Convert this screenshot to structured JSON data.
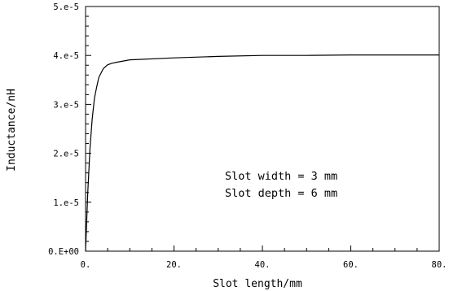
{
  "chart_data": {
    "type": "line",
    "title": "",
    "xlabel": "Slot length/mm",
    "ylabel": "Inductance/nH",
    "xlim": [
      0,
      80
    ],
    "ylim": [
      0,
      5e-05
    ],
    "x_ticks": [
      0,
      20,
      40,
      60,
      80
    ],
    "x_tick_labels": [
      "0.",
      "20.",
      "40.",
      "60.",
      "80."
    ],
    "y_ticks": [
      0,
      1e-05,
      2e-05,
      3e-05,
      4e-05,
      5e-05
    ],
    "y_tick_labels": [
      "0.E+00",
      "1.e-5",
      "2.e-5",
      "3.e-5",
      "4.e-5",
      "5.e-5"
    ],
    "grid": false,
    "legend": "none",
    "annotations": [
      "Slot width = 3 mm",
      "Slot depth = 6 mm"
    ],
    "series": [
      {
        "x": [
          0,
          0.5,
          1,
          1.5,
          2,
          2.5,
          3,
          4,
          5,
          6,
          7,
          10,
          20,
          30,
          40,
          50,
          60,
          70,
          80
        ],
        "y": [
          0,
          1.2e-05,
          2.1e-05,
          2.7e-05,
          3.12e-05,
          3.35e-05,
          3.55e-05,
          3.73e-05,
          3.81e-05,
          3.84e-05,
          3.86e-05,
          3.91e-05,
          3.95e-05,
          3.98e-05,
          4e-05,
          4e-05,
          4.01e-05,
          4.01e-05,
          4.01e-05
        ]
      }
    ],
    "colors": {
      "line": "#000000",
      "axis": "#000000"
    }
  }
}
